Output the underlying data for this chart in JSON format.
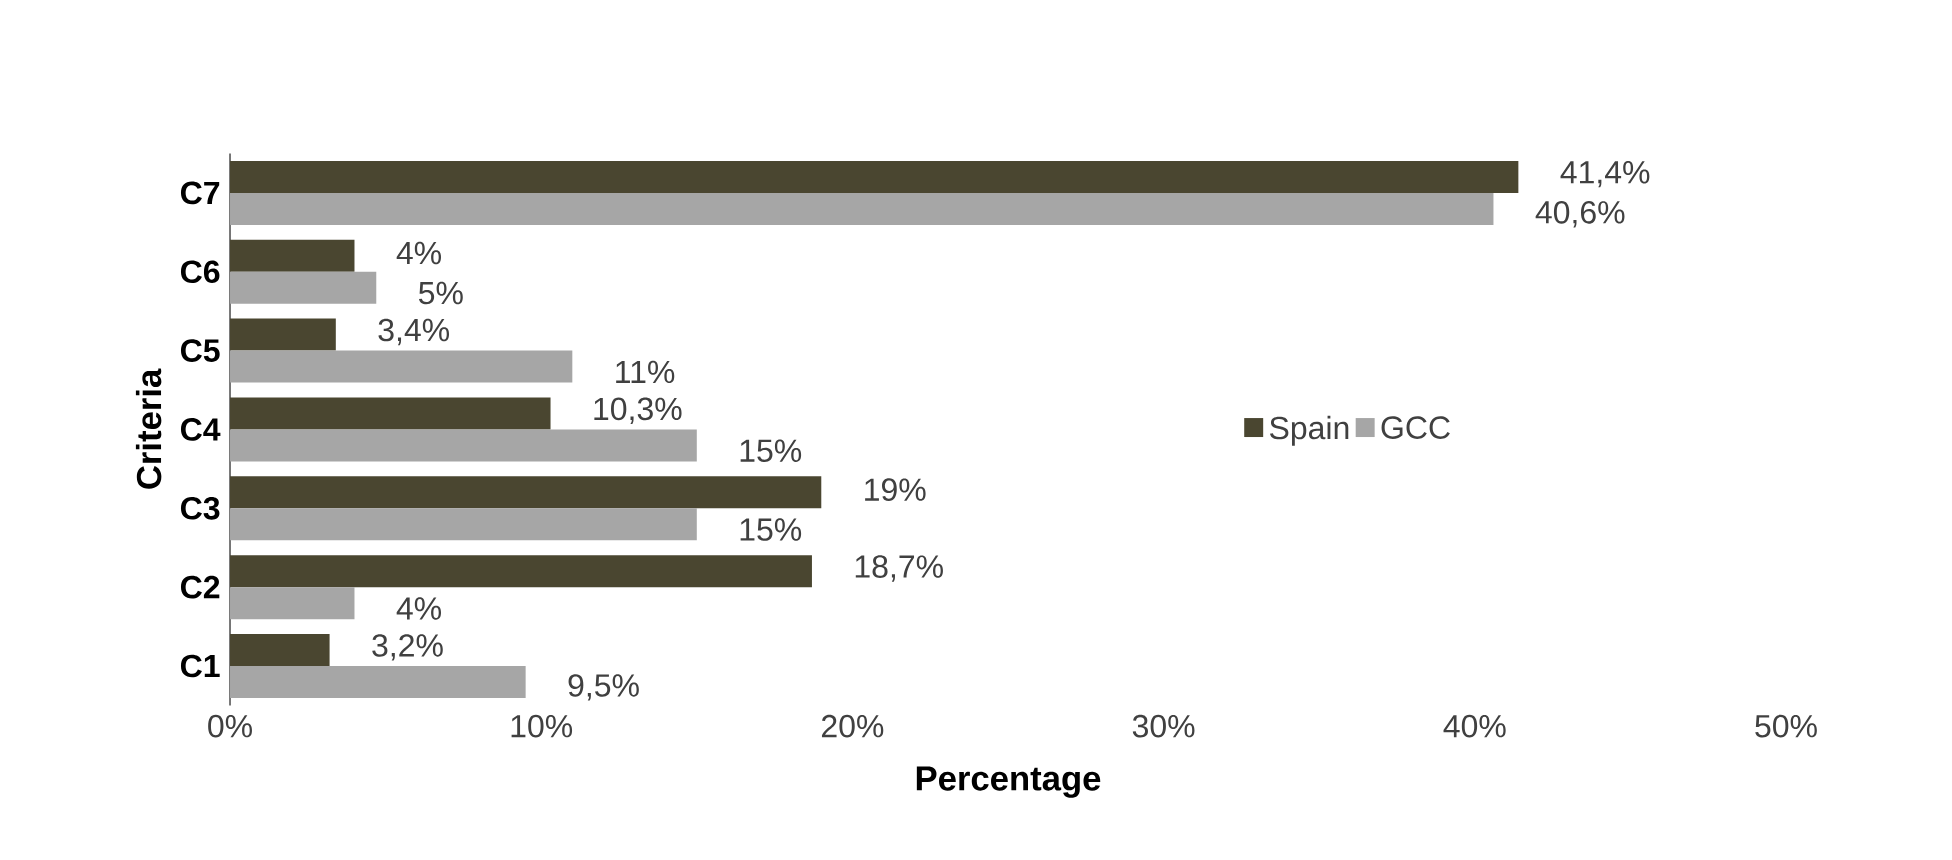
{
  "chart_data": {
    "type": "bar",
    "orientation": "horizontal",
    "xlabel": "Percentage",
    "ylabel": "Criteria",
    "categories": [
      "C7",
      "C6",
      "C5",
      "C4",
      "C3",
      "C2",
      "C1"
    ],
    "series": [
      {
        "name": "Spain",
        "color": "#4a4630",
        "values": [
          41.4,
          4,
          3.4,
          10.3,
          19,
          18.7,
          3.2
        ],
        "value_labels": [
          "41,4%",
          "4%",
          "3,4%",
          "10,3%",
          "19%",
          "18,7%",
          "3,2%"
        ]
      },
      {
        "name": "GCC",
        "color": "#a6a6a6",
        "values": [
          40.6,
          4.7,
          11,
          15,
          15,
          4,
          9.5
        ],
        "value_labels": [
          "40,6%",
          "5%",
          "11%",
          "15%",
          "15%",
          "4%",
          "9,5%"
        ]
      }
    ],
    "xlim": [
      0,
      50
    ],
    "xticks": [
      {
        "value": 0,
        "label": "0%"
      },
      {
        "value": 10,
        "label": "10%"
      },
      {
        "value": 20,
        "label": "20%"
      },
      {
        "value": 30,
        "label": "30%"
      },
      {
        "value": 40,
        "label": "40%"
      },
      {
        "value": 50,
        "label": "50%"
      }
    ],
    "grid": false,
    "legend": "right"
  }
}
